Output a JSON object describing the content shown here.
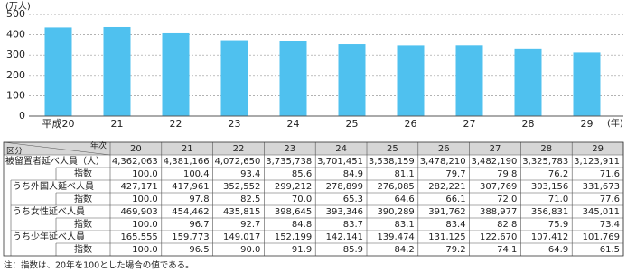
{
  "chart_data": {
    "type": "bar",
    "y_label": "(万人)",
    "x_label": "(年)",
    "categories": [
      "平成20",
      "21",
      "22",
      "23",
      "24",
      "25",
      "26",
      "27",
      "28",
      "29"
    ],
    "values": [
      436.2063,
      438.1166,
      407.265,
      373.5738,
      370.1451,
      353.8159,
      347.821,
      348.219,
      332.5783,
      312.3911
    ],
    "color": "#4fc1ef",
    "ylim": [
      0,
      500
    ],
    "yticks": [
      0,
      100,
      200,
      300,
      400,
      500
    ],
    "grid": true
  },
  "table": {
    "corner_top": "年次",
    "corner_bottom": "区分",
    "columns": [
      "20",
      "21",
      "22",
      "23",
      "24",
      "25",
      "26",
      "27",
      "28",
      "29"
    ],
    "rows": [
      {
        "label": "被留置者延べ人員（人）",
        "values": [
          "4,362,063",
          "4,381,166",
          "4,072,650",
          "3,735,738",
          "3,701,451",
          "3,538,159",
          "3,478,210",
          "3,482,190",
          "3,325,783",
          "3,123,911"
        ]
      },
      {
        "label": "指数",
        "values": [
          "100.0",
          "100.4",
          "93.4",
          "85.6",
          "84.9",
          "81.1",
          "79.7",
          "79.8",
          "76.2",
          "71.6"
        ]
      },
      {
        "label": "うち外国人延べ人員",
        "values": [
          "427,171",
          "417,961",
          "352,552",
          "299,212",
          "278,899",
          "276,085",
          "282,221",
          "307,769",
          "303,156",
          "331,673"
        ]
      },
      {
        "label": "指数",
        "values": [
          "100.0",
          "97.8",
          "82.5",
          "70.0",
          "65.3",
          "64.6",
          "66.1",
          "72.0",
          "71.0",
          "77.6"
        ]
      },
      {
        "label": "うち女性延べ人員",
        "values": [
          "469,903",
          "454,462",
          "435,815",
          "398,645",
          "393,346",
          "390,289",
          "391,762",
          "388,977",
          "356,831",
          "345,011"
        ]
      },
      {
        "label": "指数",
        "values": [
          "100.0",
          "96.7",
          "92.7",
          "84.8",
          "83.7",
          "83.1",
          "83.4",
          "82.8",
          "75.9",
          "73.4"
        ]
      },
      {
        "label": "うち少年延べ人員",
        "values": [
          "165,555",
          "159,773",
          "149,017",
          "152,199",
          "142,141",
          "139,474",
          "131,125",
          "122,670",
          "107,412",
          "101,769"
        ]
      },
      {
        "label": "指数",
        "values": [
          "100.0",
          "96.5",
          "90.0",
          "91.9",
          "85.9",
          "84.2",
          "79.2",
          "74.1",
          "64.9",
          "61.5"
        ]
      }
    ]
  },
  "note": "注：指数は、20年を100とした場合の値である。"
}
